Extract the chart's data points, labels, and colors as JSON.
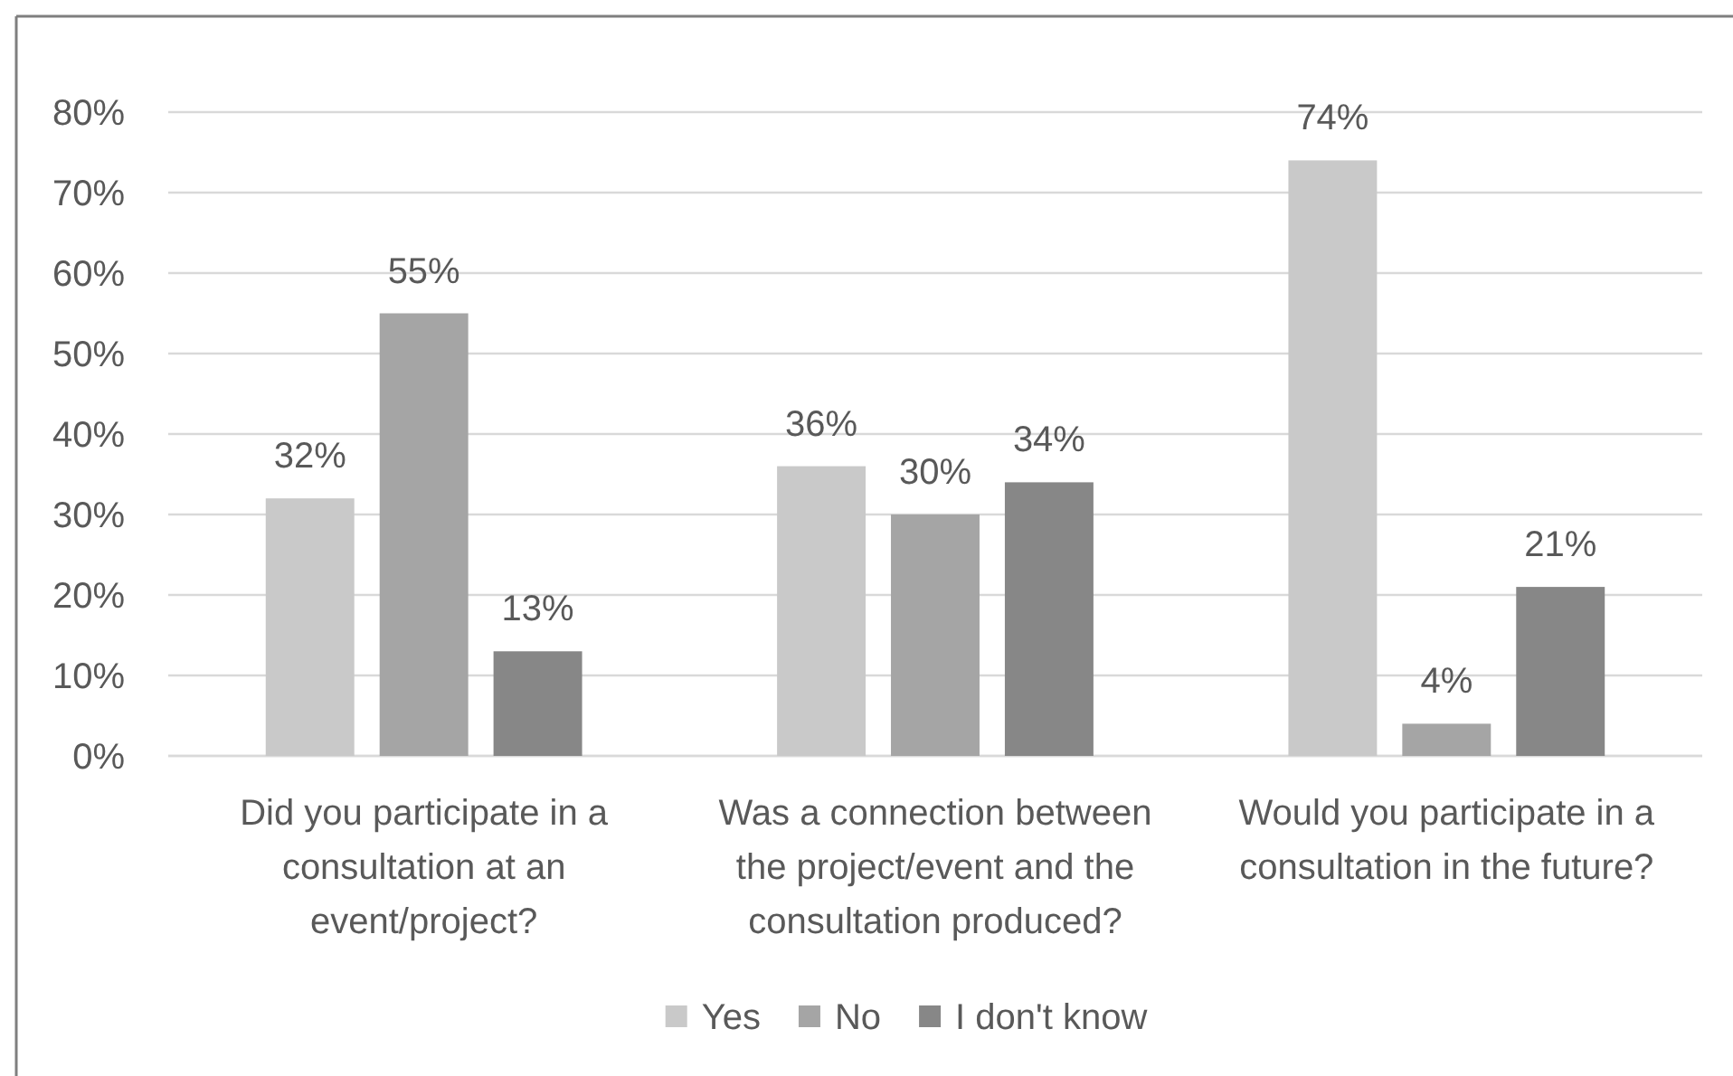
{
  "chart_data": {
    "type": "bar",
    "categories": [
      "Did you participate in a consultation at an event/project?",
      "Was a connection between the project/event and the consultation produced?",
      "Would you participate in a consultation in the future?"
    ],
    "series": [
      {
        "name": "Yes",
        "color": "#c9c9c9",
        "values": [
          32,
          36,
          74
        ],
        "value_labels": [
          "32%",
          "36%",
          "74%"
        ]
      },
      {
        "name": "No",
        "color": "#a5a5a5",
        "values": [
          55,
          30,
          4
        ],
        "value_labels": [
          "55%",
          "30%",
          "4%"
        ]
      },
      {
        "name": "I don't know",
        "color": "#878787",
        "values": [
          13,
          34,
          21
        ],
        "value_labels": [
          "13%",
          "34%",
          "21%"
        ]
      }
    ],
    "ylim": [
      0,
      80
    ],
    "yticks": [
      {
        "value": 0,
        "label": "0%"
      },
      {
        "value": 10,
        "label": "10%"
      },
      {
        "value": 20,
        "label": "20%"
      },
      {
        "value": 30,
        "label": "30%"
      },
      {
        "value": 40,
        "label": "40%"
      },
      {
        "value": 50,
        "label": "50%"
      },
      {
        "value": 60,
        "label": "60%"
      },
      {
        "value": 70,
        "label": "70%"
      },
      {
        "value": 80,
        "label": "80%"
      }
    ],
    "grid": "y",
    "legend": "bottom"
  }
}
